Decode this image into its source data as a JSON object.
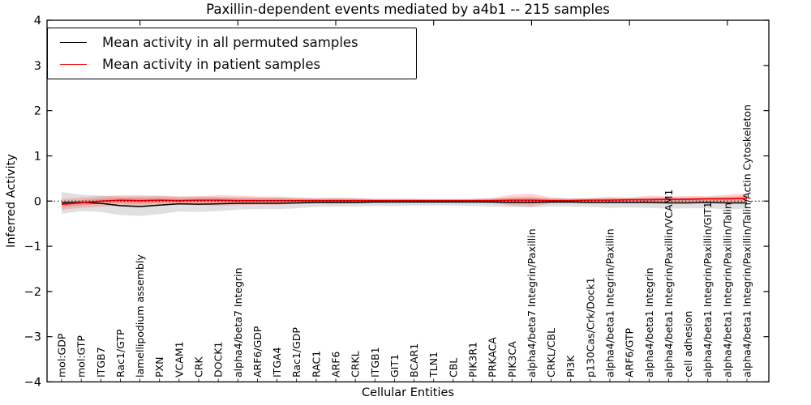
{
  "chart_data": {
    "type": "line",
    "title": "Paxillin-dependent events mediated by a4b1 -- 215 samples",
    "xlabel": "Cellular Entities",
    "ylabel": "Inferred Activity",
    "ylim": [
      -4,
      4
    ],
    "yticks": [
      4,
      3,
      2,
      1,
      0,
      -1,
      -2,
      -3,
      -4
    ],
    "grid": false,
    "legend_position": "upper left",
    "zero_reference_line": {
      "y": 0,
      "style": "dotted",
      "color": "#000000"
    },
    "top_tick_step": 5,
    "categories": [
      "mol:GDP",
      "mol:GTP",
      "ITGB7",
      "Rac1/GTP",
      "lamellipodium assembly",
      "PXN",
      "VCAM1",
      "CRK",
      "DOCK1",
      "alpha4/beta7 Integrin",
      "ARF6/GDP",
      "ITGA4",
      "Rac1/GDP",
      "RAC1",
      "ARF6",
      "CRKL",
      "ITGB1",
      "GIT1",
      "BCAR1",
      "TLN1",
      "CBL",
      "PIK3R1",
      "PRKACA",
      "PIK3CA",
      "alpha4/beta7 Integrin/Paxillin",
      "CRKL/CBL",
      "PI3K",
      "p130Cas/Crk/Dock1",
      "alpha4/beta1 Integrin/Paxillin",
      "ARF6/GTP",
      "alpha4/beta1 Integrin",
      "alpha4/beta1 Integrin/Paxillin/VCAM1",
      "cell adhesion",
      "alpha4/beta1 Integrin/Paxillin/GIT1",
      "alpha4/beta1 Integrin/Paxillin/Talin",
      "alpha4/beta1 Integrin/Paxillin/Talin/Actin Cytoskeleton"
    ],
    "series": [
      {
        "name": "Mean activity in all permuted samples",
        "color": "#000000",
        "band_color": "#999999",
        "values": [
          -0.04,
          -0.03,
          -0.05,
          -0.1,
          -0.12,
          -0.09,
          -0.06,
          -0.07,
          -0.06,
          -0.05,
          -0.05,
          -0.05,
          -0.04,
          -0.03,
          -0.03,
          -0.03,
          -0.02,
          -0.02,
          -0.02,
          -0.02,
          -0.02,
          -0.02,
          -0.02,
          -0.03,
          -0.03,
          -0.02,
          -0.02,
          -0.03,
          -0.03,
          -0.03,
          -0.03,
          -0.04,
          -0.04,
          -0.03,
          -0.04,
          -0.04
        ],
        "band_upper": [
          0.2,
          0.14,
          0.12,
          0.1,
          0.1,
          0.11,
          0.1,
          0.1,
          0.09,
          0.08,
          0.08,
          0.08,
          0.07,
          0.06,
          0.06,
          0.06,
          0.05,
          0.05,
          0.05,
          0.05,
          0.05,
          0.05,
          0.06,
          0.06,
          0.06,
          0.06,
          0.06,
          0.06,
          0.07,
          0.06,
          0.07,
          0.07,
          0.07,
          0.07,
          0.08,
          0.07
        ],
        "band_lower": [
          -0.28,
          -0.22,
          -0.24,
          -0.31,
          -0.33,
          -0.29,
          -0.23,
          -0.24,
          -0.22,
          -0.19,
          -0.18,
          -0.18,
          -0.16,
          -0.13,
          -0.12,
          -0.12,
          -0.11,
          -0.11,
          -0.1,
          -0.1,
          -0.1,
          -0.11,
          -0.12,
          -0.13,
          -0.14,
          -0.12,
          -0.12,
          -0.13,
          -0.15,
          -0.14,
          -0.15,
          -0.17,
          -0.16,
          -0.16,
          -0.18,
          -0.17
        ]
      },
      {
        "name": "Mean activity in patient samples",
        "color": "#ee0000",
        "band_color": "#ff3333",
        "values": [
          -0.07,
          -0.04,
          0.0,
          0.02,
          0.01,
          0.02,
          0.01,
          0.02,
          0.02,
          0.01,
          0.01,
          0.01,
          0.01,
          0.01,
          0.01,
          0.01,
          0.01,
          0.01,
          0.01,
          0.01,
          0.01,
          0.01,
          0.01,
          0.02,
          0.02,
          0.01,
          0.01,
          0.02,
          0.02,
          0.03,
          0.03,
          0.04,
          0.04,
          0.05,
          0.05,
          0.06
        ],
        "band_upper": [
          0.05,
          0.08,
          0.11,
          0.13,
          0.13,
          0.12,
          0.1,
          0.11,
          0.13,
          0.12,
          0.1,
          0.1,
          0.08,
          0.07,
          0.08,
          0.07,
          0.05,
          0.05,
          0.05,
          0.04,
          0.04,
          0.05,
          0.07,
          0.14,
          0.16,
          0.08,
          0.06,
          0.07,
          0.09,
          0.08,
          0.12,
          0.1,
          0.11,
          0.11,
          0.14,
          0.17
        ],
        "band_lower": [
          -0.19,
          -0.15,
          -0.12,
          -0.11,
          -0.12,
          -0.1,
          -0.08,
          -0.09,
          -0.1,
          -0.09,
          -0.08,
          -0.08,
          -0.06,
          -0.05,
          -0.05,
          -0.05,
          -0.04,
          -0.03,
          -0.03,
          -0.03,
          -0.03,
          -0.03,
          -0.05,
          -0.1,
          -0.12,
          -0.05,
          -0.04,
          -0.04,
          -0.05,
          -0.04,
          -0.05,
          -0.04,
          -0.04,
          -0.03,
          -0.03,
          -0.02
        ]
      }
    ]
  }
}
